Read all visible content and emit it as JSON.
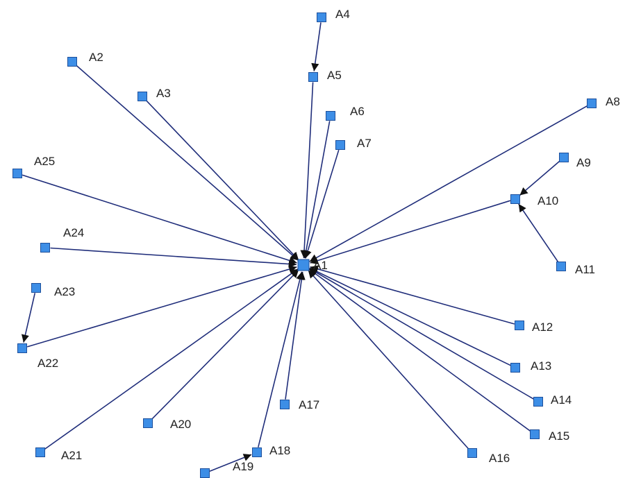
{
  "diagram": {
    "colors": {
      "node_fill": "#3d8ee6",
      "node_stroke": "#1d4f9b",
      "edge": "#1f2d7a",
      "arrowhead": "#111111",
      "label": "#222222",
      "background": "#ffffff"
    },
    "nodes": [
      {
        "id": "A1",
        "label": "A1",
        "icon": "square-node-icon"
      },
      {
        "id": "A2",
        "label": "A2",
        "icon": "square-node-icon"
      },
      {
        "id": "A3",
        "label": "A3",
        "icon": "square-node-icon"
      },
      {
        "id": "A4",
        "label": "A4",
        "icon": "square-node-icon"
      },
      {
        "id": "A5",
        "label": "A5",
        "icon": "square-node-icon"
      },
      {
        "id": "A6",
        "label": "A6",
        "icon": "square-node-icon"
      },
      {
        "id": "A7",
        "label": "A7",
        "icon": "square-node-icon"
      },
      {
        "id": "A8",
        "label": "A8",
        "icon": "square-node-icon"
      },
      {
        "id": "A9",
        "label": "A9",
        "icon": "square-node-icon"
      },
      {
        "id": "A10",
        "label": "A10",
        "icon": "square-node-icon"
      },
      {
        "id": "A11",
        "label": "A11",
        "icon": "square-node-icon"
      },
      {
        "id": "A12",
        "label": "A12",
        "icon": "square-node-icon"
      },
      {
        "id": "A13",
        "label": "A13",
        "icon": "square-node-icon"
      },
      {
        "id": "A14",
        "label": "A14",
        "icon": "square-node-icon"
      },
      {
        "id": "A15",
        "label": "A15",
        "icon": "square-node-icon"
      },
      {
        "id": "A16",
        "label": "A16",
        "icon": "square-node-icon"
      },
      {
        "id": "A17",
        "label": "A17",
        "icon": "square-node-icon"
      },
      {
        "id": "A18",
        "label": "A18",
        "icon": "square-node-icon"
      },
      {
        "id": "A19",
        "label": "A19",
        "icon": "square-node-icon"
      },
      {
        "id": "A20",
        "label": "A20",
        "icon": "square-node-icon"
      },
      {
        "id": "A21",
        "label": "A21",
        "icon": "square-node-icon"
      },
      {
        "id": "A22",
        "label": "A22",
        "icon": "square-node-icon"
      },
      {
        "id": "A23",
        "label": "A23",
        "icon": "square-node-icon"
      },
      {
        "id": "A24",
        "label": "A24",
        "icon": "square-node-icon"
      },
      {
        "id": "A25",
        "label": "A25",
        "icon": "square-node-icon"
      }
    ],
    "edges": [
      {
        "from": "A2",
        "to": "A1"
      },
      {
        "from": "A3",
        "to": "A1"
      },
      {
        "from": "A4",
        "to": "A5"
      },
      {
        "from": "A5",
        "to": "A1"
      },
      {
        "from": "A6",
        "to": "A1"
      },
      {
        "from": "A7",
        "to": "A1"
      },
      {
        "from": "A8",
        "to": "A1"
      },
      {
        "from": "A9",
        "to": "A10"
      },
      {
        "from": "A10",
        "to": "A1"
      },
      {
        "from": "A11",
        "to": "A10"
      },
      {
        "from": "A12",
        "to": "A1"
      },
      {
        "from": "A13",
        "to": "A1"
      },
      {
        "from": "A14",
        "to": "A1"
      },
      {
        "from": "A15",
        "to": "A1"
      },
      {
        "from": "A16",
        "to": "A1"
      },
      {
        "from": "A17",
        "to": "A1"
      },
      {
        "from": "A18",
        "to": "A1"
      },
      {
        "from": "A19",
        "to": "A18"
      },
      {
        "from": "A20",
        "to": "A1"
      },
      {
        "from": "A21",
        "to": "A1"
      },
      {
        "from": "A22",
        "to": "A1"
      },
      {
        "from": "A23",
        "to": "A22"
      },
      {
        "from": "A24",
        "to": "A1"
      },
      {
        "from": "A25",
        "to": "A1"
      }
    ]
  }
}
